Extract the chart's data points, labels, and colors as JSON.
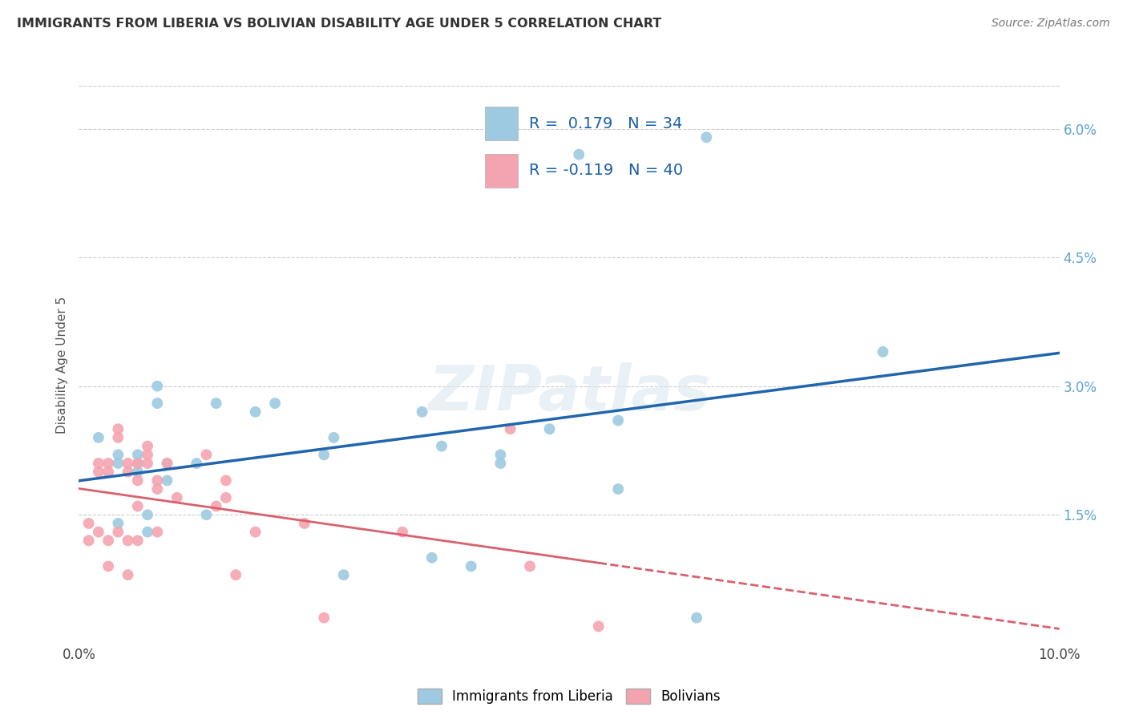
{
  "title": "IMMIGRANTS FROM LIBERIA VS BOLIVIAN DISABILITY AGE UNDER 5 CORRELATION CHART",
  "source": "Source: ZipAtlas.com",
  "ylabel": "Disability Age Under 5",
  "legend_labels": [
    "Immigrants from Liberia",
    "Bolivians"
  ],
  "legend_r": [
    0.179,
    -0.119
  ],
  "legend_n": [
    34,
    40
  ],
  "xlim": [
    0.0,
    0.1
  ],
  "ylim": [
    0.0,
    0.065
  ],
  "xticks": [
    0.0,
    0.02,
    0.04,
    0.06,
    0.08,
    0.1
  ],
  "xtick_labels": [
    "0.0%",
    "",
    "",
    "",
    "",
    "10.0%"
  ],
  "yticks_right": [
    0.015,
    0.03,
    0.045,
    0.06
  ],
  "ytick_labels_right": [
    "1.5%",
    "3.0%",
    "4.5%",
    "6.0%"
  ],
  "color_blue": "#9ecae1",
  "color_pink": "#f4a4b0",
  "color_blue_line": "#2166ac",
  "color_pink_line": "#d9606e",
  "background_color": "#ffffff",
  "watermark": "ZIPatlas",
  "blue_points_x": [
    0.002,
    0.004,
    0.004,
    0.004,
    0.006,
    0.006,
    0.006,
    0.007,
    0.007,
    0.008,
    0.008,
    0.009,
    0.009,
    0.012,
    0.013,
    0.014,
    0.018,
    0.02,
    0.025,
    0.026,
    0.027,
    0.035,
    0.036,
    0.037,
    0.04,
    0.043,
    0.043,
    0.048,
    0.055,
    0.055,
    0.063,
    0.064,
    0.082,
    0.051
  ],
  "blue_points_y": [
    0.024,
    0.022,
    0.021,
    0.014,
    0.022,
    0.021,
    0.02,
    0.015,
    0.013,
    0.03,
    0.028,
    0.021,
    0.019,
    0.021,
    0.015,
    0.028,
    0.027,
    0.028,
    0.022,
    0.024,
    0.008,
    0.027,
    0.01,
    0.023,
    0.009,
    0.022,
    0.021,
    0.025,
    0.026,
    0.018,
    0.003,
    0.059,
    0.034,
    0.057
  ],
  "pink_points_x": [
    0.001,
    0.001,
    0.002,
    0.002,
    0.002,
    0.003,
    0.003,
    0.003,
    0.003,
    0.004,
    0.004,
    0.004,
    0.005,
    0.005,
    0.005,
    0.005,
    0.006,
    0.006,
    0.006,
    0.006,
    0.007,
    0.007,
    0.007,
    0.008,
    0.008,
    0.008,
    0.009,
    0.01,
    0.013,
    0.014,
    0.015,
    0.015,
    0.016,
    0.018,
    0.023,
    0.025,
    0.033,
    0.044,
    0.046,
    0.053
  ],
  "pink_points_y": [
    0.014,
    0.012,
    0.021,
    0.02,
    0.013,
    0.021,
    0.02,
    0.012,
    0.009,
    0.025,
    0.024,
    0.013,
    0.021,
    0.02,
    0.012,
    0.008,
    0.021,
    0.019,
    0.016,
    0.012,
    0.023,
    0.022,
    0.021,
    0.019,
    0.018,
    0.013,
    0.021,
    0.017,
    0.022,
    0.016,
    0.019,
    0.017,
    0.008,
    0.013,
    0.014,
    0.003,
    0.013,
    0.025,
    0.009,
    0.002
  ]
}
